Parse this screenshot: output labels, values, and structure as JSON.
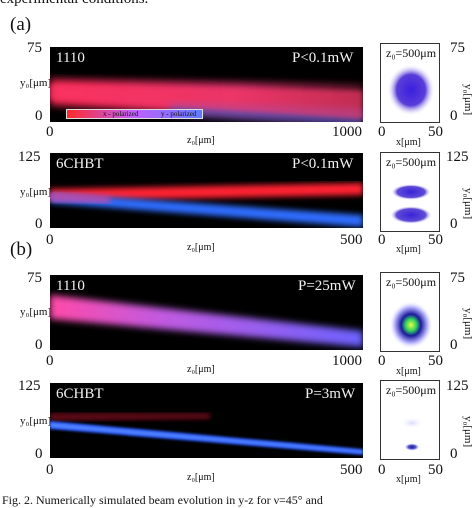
{
  "page": {
    "top_text": "experimental conditions.",
    "bottom_text": "Fig. 2. Numerically simulated beam evolution in y-z for ν=45° and"
  },
  "panels": {
    "a_label": "(a)",
    "b_label": "(b)"
  },
  "legend": {
    "left": "x - polarized",
    "right": "y - polarized"
  },
  "plots": [
    {
      "material": "1110",
      "power": "P<0.1mW",
      "y_max": "75",
      "y_min": "0",
      "x_min": "0",
      "x_max": "1000",
      "y_label": "y₀[μm]",
      "x_label": "z₀[μm]",
      "cs_title": "z₀=500μm",
      "cs_x_min": "0",
      "cs_x_max": "50",
      "cs_x_label": "x[μm]",
      "cs_y_max": "75",
      "cs_y_min": "0",
      "cs_y_label": "y₀[μm]"
    },
    {
      "material": "6CHBT",
      "power": "P<0.1mW",
      "y_max": "125",
      "y_min": "0",
      "x_min": "0",
      "x_max": "500",
      "y_label": "y₀[μm]",
      "x_label": "z₀[μm]",
      "cs_title": "z₀=500μm",
      "cs_x_min": "0",
      "cs_x_max": "50",
      "cs_x_label": "x[μm]",
      "cs_y_max": "125",
      "cs_y_min": "0",
      "cs_y_label": "y₀[μm]"
    },
    {
      "material": "1110",
      "power": "P=25mW",
      "y_max": "75",
      "y_min": "0",
      "x_min": "0",
      "x_max": "1000",
      "y_label": "y₀[μm]",
      "x_label": "z₀[μm]",
      "cs_title": "z₀=500μm",
      "cs_x_min": "0",
      "cs_x_max": "50",
      "cs_x_label": "x[μm]",
      "cs_y_max": "75",
      "cs_y_min": "0",
      "cs_y_label": "y₀[μm]"
    },
    {
      "material": "6CHBT",
      "power": "P=3mW",
      "y_max": "125",
      "y_min": "0",
      "x_min": "0",
      "x_max": "500",
      "y_label": "y₀[μm]",
      "x_label": "z₀[μm]",
      "cs_title": "z₀=500μm",
      "cs_x_min": "0",
      "cs_x_max": "50",
      "cs_x_label": "x[μm]",
      "cs_y_max": "125",
      "cs_y_min": "0",
      "cs_y_label": "y₀[μm]"
    }
  ],
  "colors": {
    "x_polarized": "#ff2a2a",
    "y_polarized": "#4f7bff",
    "mixed": "#c060ff",
    "background": "#000000"
  }
}
